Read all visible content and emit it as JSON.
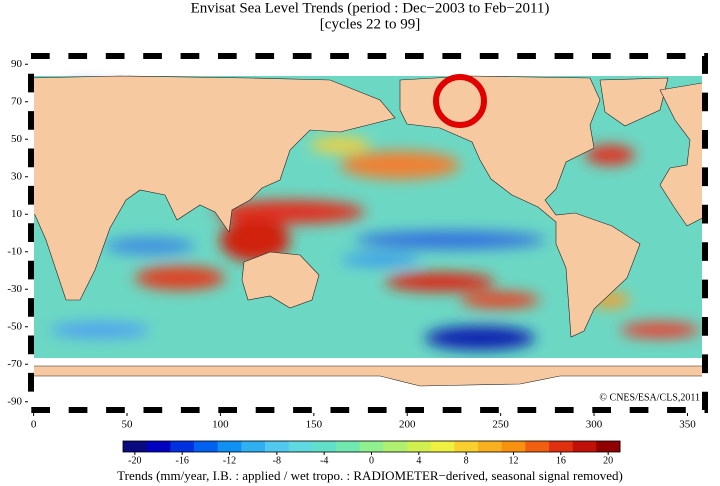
{
  "chart_data": {
    "type": "map",
    "title": "Envisat Sea Level Trends (period : Dec−2003 to Feb−2011)",
    "subtitle": "[cycles 22 to 99]",
    "credit": "© CNES/ESA/CLS,2011",
    "colorbar_label": "Trends (mm/year, I.B. : applied / wet tropo. : RADIOMETER−derived, seasonal signal removed)",
    "xlim": [
      -3,
      361
    ],
    "xticks": [
      0,
      50,
      100,
      150,
      200,
      250,
      300,
      350
    ],
    "ylim": [
      -96,
      96
    ],
    "yticks": [
      90,
      70,
      50,
      30,
      10,
      -10,
      -30,
      -50,
      -70,
      -90
    ],
    "colorbar": {
      "lim": [
        -21,
        21
      ],
      "ticks": [
        -20,
        -16,
        -12,
        -8,
        -4,
        0,
        4,
        8,
        12,
        16,
        20
      ],
      "colors": [
        "#0a0a80",
        "#0000c0",
        "#0030e0",
        "#0060f0",
        "#1090f0",
        "#30b0f0",
        "#50c8f0",
        "#60d8e0",
        "#60e0c8",
        "#70e8b0",
        "#90f090",
        "#b0f070",
        "#d0f050",
        "#f0f040",
        "#f8d030",
        "#f8b020",
        "#f89010",
        "#f06010",
        "#e03010",
        "#c01008",
        "#900000"
      ]
    }
  }
}
